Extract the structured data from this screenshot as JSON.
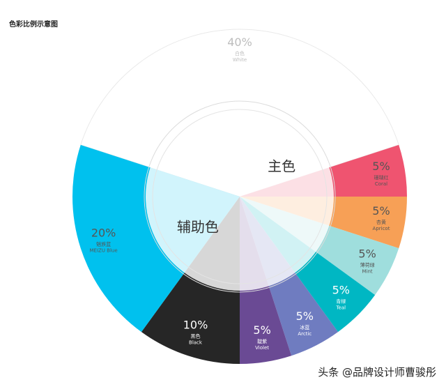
{
  "page": {
    "title": "色彩比例示意图",
    "watermark": "头条 @品牌设计师曹骏彤"
  },
  "chart_data": {
    "type": "pie",
    "title": "色彩比例示意图",
    "slices": [
      {
        "percent": "40%",
        "value": 40,
        "name_cn": "白色",
        "name_en": "White",
        "color": "#ffffff"
      },
      {
        "percent": "5%",
        "value": 5,
        "name_cn": "珊瑚红",
        "name_en": "Coral",
        "color": "#ef5470"
      },
      {
        "percent": "5%",
        "value": 5,
        "name_cn": "杏黄",
        "name_en": "Apricot",
        "color": "#f7a056"
      },
      {
        "percent": "5%",
        "value": 5,
        "name_cn": "薄荷绿",
        "name_en": "Mint",
        "color": "#9fdedd"
      },
      {
        "percent": "5%",
        "value": 5,
        "name_cn": "青绿",
        "name_en": "Teal",
        "color": "#00b7c3"
      },
      {
        "percent": "5%",
        "value": 5,
        "name_cn": "冰蓝",
        "name_en": "Arctic",
        "color": "#6f7cc0"
      },
      {
        "percent": "5%",
        "value": 5,
        "name_cn": "靛紫",
        "name_en": "Violet",
        "color": "#6a4a94"
      },
      {
        "percent": "10%",
        "value": 10,
        "name_cn": "黑色",
        "name_en": "Black",
        "color": "#262626"
      },
      {
        "percent": "20%",
        "value": 20,
        "name_cn": "魅族蓝",
        "name_en": "MEIZU Blue",
        "color": "#00c1ee"
      }
    ],
    "inner_groups": [
      {
        "label": "主色",
        "value": 70,
        "color": "#e6f7fc"
      },
      {
        "label": "辅助色",
        "value": 30,
        "color": "#f3f3f6"
      }
    ]
  }
}
